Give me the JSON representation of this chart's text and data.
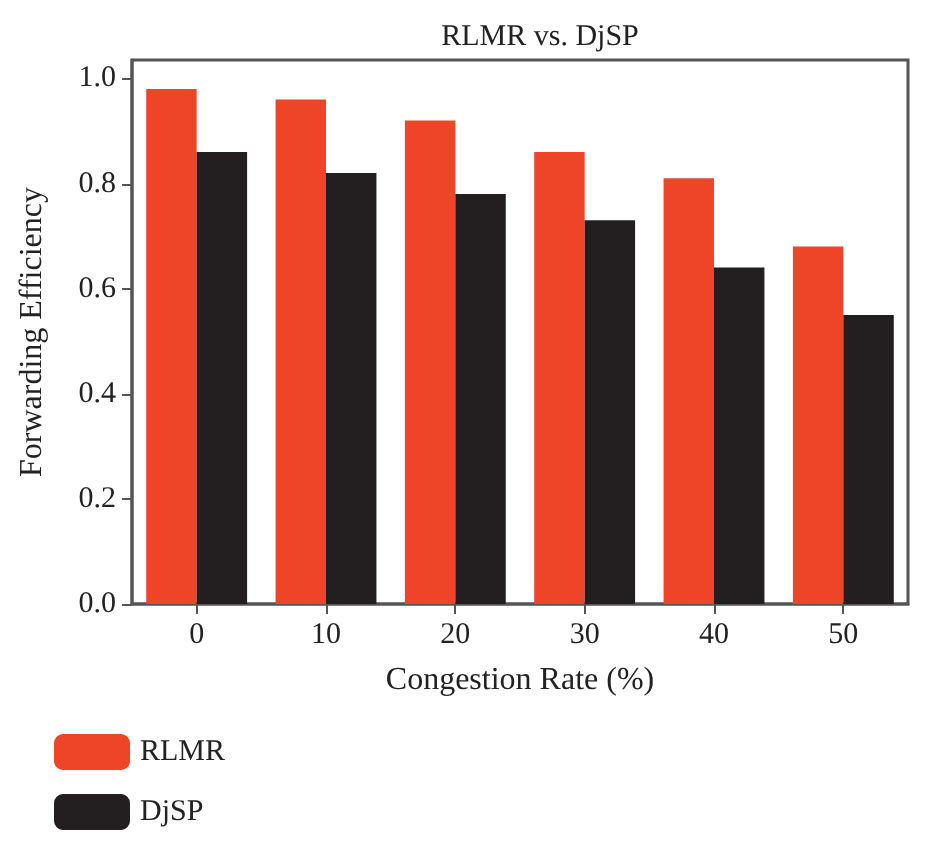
{
  "chart_data": {
    "type": "bar",
    "title": "RLMR vs. DjSP",
    "xlabel": "Congestion Rate (%)",
    "ylabel": "Forwarding Efficiency",
    "categories": [
      "0",
      "10",
      "20",
      "30",
      "40",
      "50"
    ],
    "series": [
      {
        "name": "RLMR",
        "color": "#ee4427",
        "values": [
          0.98,
          0.96,
          0.92,
          0.86,
          0.81,
          0.68
        ]
      },
      {
        "name": "DjSP",
        "color": "#231f20",
        "values": [
          0.86,
          0.82,
          0.78,
          0.73,
          0.64,
          0.55
        ]
      }
    ],
    "ylim": [
      0,
      1.035
    ],
    "yticks": [
      {
        "value": 0,
        "label": "0.0"
      },
      {
        "value": 0.2,
        "label": "0.2"
      },
      {
        "value": 0.4,
        "label": "0.4"
      },
      {
        "value": 0.6,
        "label": "0.6"
      },
      {
        "value": 0.8,
        "label": "0.8"
      },
      {
        "value": 1,
        "label": "1.0"
      }
    ],
    "grid": false,
    "legend": "bottom left"
  }
}
